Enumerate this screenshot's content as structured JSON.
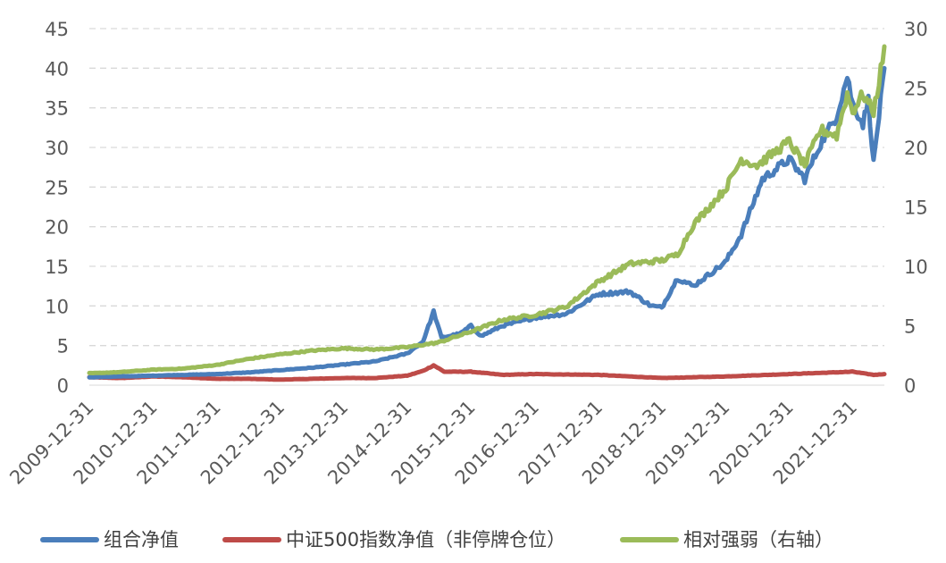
{
  "chart_data": {
    "type": "line",
    "xlabel": "",
    "ylabel": "",
    "y_left": {
      "min": 0,
      "max": 45,
      "ticks": [
        "0",
        "5",
        "10",
        "15",
        "20",
        "25",
        "30",
        "35",
        "40",
        "45"
      ]
    },
    "y_right": {
      "min": 0,
      "max": 30,
      "ticks": [
        "0",
        "5",
        "10",
        "15",
        "20",
        "25",
        "30"
      ]
    },
    "x_ticks": [
      "2009-12-31",
      "2010-12-31",
      "2011-12-31",
      "2012-12-31",
      "2013-12-31",
      "2014-12-31",
      "2015-12-31",
      "2016-12-31",
      "2017-12-31",
      "2018-12-31",
      "2019-12-31",
      "2020-12-31",
      "2021-12-31"
    ],
    "x_range": [
      "2009-12-31",
      "2022-07-01"
    ],
    "grid": "horizontal-dashed",
    "legend_position": "bottom",
    "series": [
      {
        "name": "组合净值",
        "axis": "left",
        "color": "#4a7ebb",
        "points": [
          [
            "2009-12-31",
            1.0
          ],
          [
            "2010-06-30",
            1.1
          ],
          [
            "2010-12-31",
            1.2
          ],
          [
            "2011-06-30",
            1.3
          ],
          [
            "2011-12-31",
            1.4
          ],
          [
            "2012-06-30",
            1.6
          ],
          [
            "2012-12-31",
            1.9
          ],
          [
            "2013-06-30",
            2.2
          ],
          [
            "2013-12-31",
            2.6
          ],
          [
            "2014-06-30",
            3.0
          ],
          [
            "2014-12-31",
            4.0
          ],
          [
            "2015-03-31",
            5.5
          ],
          [
            "2015-05-31",
            9.3
          ],
          [
            "2015-07-15",
            6.0
          ],
          [
            "2015-10-31",
            6.5
          ],
          [
            "2015-12-31",
            7.5
          ],
          [
            "2016-02-28",
            6.2
          ],
          [
            "2016-06-30",
            7.5
          ],
          [
            "2016-12-31",
            8.5
          ],
          [
            "2017-06-30",
            9.0
          ],
          [
            "2017-12-31",
            11.5
          ],
          [
            "2018-06-30",
            11.8
          ],
          [
            "2018-10-31",
            10.0
          ],
          [
            "2018-12-31",
            9.8
          ],
          [
            "2019-03-31",
            13.5
          ],
          [
            "2019-06-30",
            12.5
          ],
          [
            "2019-12-31",
            15.5
          ],
          [
            "2020-03-31",
            19.0
          ],
          [
            "2020-07-31",
            26.0
          ],
          [
            "2020-12-31",
            28.5
          ],
          [
            "2021-03-31",
            26.0
          ],
          [
            "2021-06-30",
            30.5
          ],
          [
            "2021-09-30",
            34.0
          ],
          [
            "2021-11-30",
            39.0
          ],
          [
            "2021-12-31",
            35.5
          ],
          [
            "2022-02-28",
            33.0
          ],
          [
            "2022-03-31",
            36.0
          ],
          [
            "2022-04-30",
            28.0
          ],
          [
            "2022-05-31",
            34.0
          ],
          [
            "2022-07-01",
            40.0
          ]
        ]
      },
      {
        "name": "中证500指数净值（非停牌仓位）",
        "axis": "left",
        "color": "#be4b48",
        "points": [
          [
            "2009-12-31",
            1.0
          ],
          [
            "2010-06-30",
            0.9
          ],
          [
            "2010-12-31",
            1.1
          ],
          [
            "2011-06-30",
            1.0
          ],
          [
            "2011-12-31",
            0.8
          ],
          [
            "2012-06-30",
            0.8
          ],
          [
            "2012-12-31",
            0.7
          ],
          [
            "2013-06-30",
            0.8
          ],
          [
            "2013-12-31",
            0.9
          ],
          [
            "2014-06-30",
            0.9
          ],
          [
            "2014-12-31",
            1.2
          ],
          [
            "2015-03-31",
            1.8
          ],
          [
            "2015-05-31",
            2.5
          ],
          [
            "2015-07-31",
            1.7
          ],
          [
            "2015-12-31",
            1.7
          ],
          [
            "2016-06-30",
            1.3
          ],
          [
            "2016-12-31",
            1.4
          ],
          [
            "2017-12-31",
            1.3
          ],
          [
            "2018-12-31",
            0.9
          ],
          [
            "2019-12-31",
            1.1
          ],
          [
            "2020-12-31",
            1.4
          ],
          [
            "2021-12-31",
            1.7
          ],
          [
            "2022-04-30",
            1.3
          ],
          [
            "2022-07-01",
            1.4
          ]
        ]
      },
      {
        "name": "相对强弱（右轴）",
        "axis": "right",
        "color": "#9bbb59",
        "points": [
          [
            "2009-12-31",
            1.0
          ],
          [
            "2010-06-30",
            1.1
          ],
          [
            "2010-12-31",
            1.3
          ],
          [
            "2011-06-30",
            1.4
          ],
          [
            "2011-12-31",
            1.7
          ],
          [
            "2012-06-30",
            2.2
          ],
          [
            "2012-12-31",
            2.6
          ],
          [
            "2013-06-30",
            2.9
          ],
          [
            "2013-12-31",
            3.1
          ],
          [
            "2014-06-30",
            3.0
          ],
          [
            "2014-12-31",
            3.2
          ],
          [
            "2015-06-30",
            3.6
          ],
          [
            "2015-12-31",
            4.5
          ],
          [
            "2016-06-30",
            5.5
          ],
          [
            "2016-12-31",
            5.9
          ],
          [
            "2017-06-30",
            6.6
          ],
          [
            "2017-12-31",
            8.7
          ],
          [
            "2018-06-30",
            10.2
          ],
          [
            "2018-12-31",
            10.5
          ],
          [
            "2019-03-31",
            11.0
          ],
          [
            "2019-06-30",
            13.5
          ],
          [
            "2019-12-31",
            16.5
          ],
          [
            "2020-03-31",
            19.0
          ],
          [
            "2020-06-30",
            18.5
          ],
          [
            "2020-12-31",
            20.5
          ],
          [
            "2021-03-31",
            18.5
          ],
          [
            "2021-06-30",
            21.5
          ],
          [
            "2021-09-30",
            21.0
          ],
          [
            "2021-11-30",
            24.5
          ],
          [
            "2021-12-31",
            23.0
          ],
          [
            "2022-02-28",
            24.5
          ],
          [
            "2022-04-30",
            23.0
          ],
          [
            "2022-05-31",
            25.5
          ],
          [
            "2022-07-01",
            28.5
          ]
        ]
      }
    ]
  }
}
